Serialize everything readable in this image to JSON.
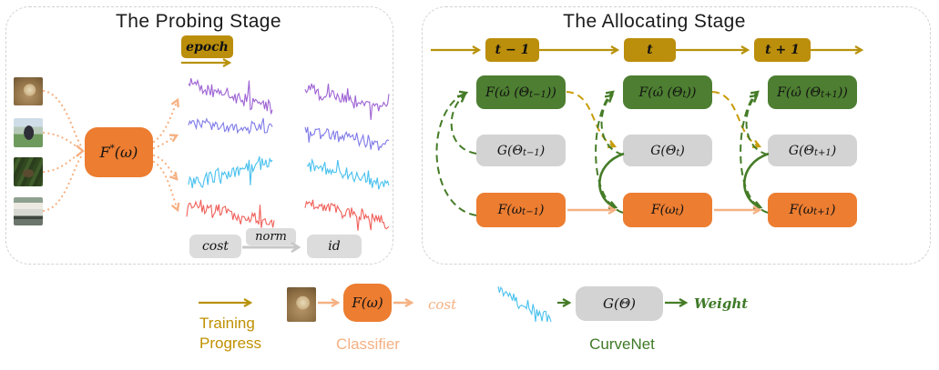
{
  "colors": {
    "gold": "#B8920B",
    "gold_box": "#BB8E0C",
    "green_box": "#4D7E31",
    "green_arrow": "#457C27",
    "orange_box": "#EC7D31",
    "peach": "#F5B183",
    "gray_box": "#D3D3D3",
    "gray_arrow": "#C8C8C8",
    "curves": {
      "purple": "#9E63D4",
      "periwinkle": "#807BE8",
      "cyan": "#49C1EE",
      "red": "#F0605A"
    }
  },
  "probing": {
    "title": "The Probing Stage",
    "epoch_label": "epoch",
    "model_box": {
      "pre": "F",
      "sup": "*",
      "post": " (ω)"
    },
    "images": [
      {
        "label": "dog"
      },
      {
        "label": "horse"
      },
      {
        "label": "deer"
      },
      {
        "label": "truck"
      }
    ],
    "cost_label": "cost",
    "norm_label": "norm",
    "id_label": "id"
  },
  "allocating": {
    "title": "The Allocating Stage",
    "timeline": [
      {
        "label": "t − 1"
      },
      {
        "label": "t"
      },
      {
        "label": "t + 1"
      }
    ],
    "columns": [
      {
        "green": {
          "pre": "F(ω̂ (Θ",
          "sub": "t−1",
          "post": "))"
        },
        "gray": {
          "pre": "G(Θ",
          "sub": "t−1",
          "post": ")"
        },
        "orange": {
          "pre": "F(ω",
          "sub": "t−1",
          "post": ")"
        }
      },
      {
        "green": {
          "pre": "F(ω̂ (Θ",
          "sub": "t",
          "post": "))"
        },
        "gray": {
          "pre": "G(Θ",
          "sub": "t",
          "post": ")"
        },
        "orange": {
          "pre": "F(ω",
          "sub": "t",
          "post": ")"
        }
      },
      {
        "green": {
          "pre": "F(ω̂ (Θ",
          "sub": "t+1",
          "post": "))"
        },
        "gray": {
          "pre": "G(Θ",
          "sub": "t+1",
          "post": ")"
        },
        "orange": {
          "pre": "F(ω",
          "sub": "t+1",
          "post": ")"
        }
      }
    ]
  },
  "legend": {
    "training_line1": "Training",
    "training_line2": "Progress",
    "classifier_box": "F(ω)",
    "classifier_output": "cost",
    "classifier_caption": "Classifier",
    "curvenet_box": "G(Θ)",
    "curvenet_output": "Weight",
    "curvenet_caption": "CurveNet"
  }
}
